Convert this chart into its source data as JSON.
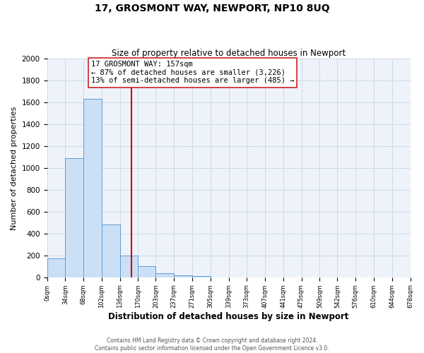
{
  "title": "17, GROSMONT WAY, NEWPORT, NP10 8UQ",
  "subtitle": "Size of property relative to detached houses in Newport",
  "xlabel": "Distribution of detached houses by size in Newport",
  "ylabel": "Number of detached properties",
  "annotation_title": "17 GROSMONT WAY: 157sqm",
  "annotation_line1": "← 87% of detached houses are smaller (3,226)",
  "annotation_line2": "13% of semi-detached houses are larger (485) →",
  "property_size": 157,
  "bin_edges": [
    0,
    34,
    68,
    102,
    136,
    170,
    203,
    237,
    271,
    305,
    339,
    373,
    407,
    441,
    475,
    509,
    542,
    576,
    610,
    644,
    678
  ],
  "bin_counts": [
    170,
    1090,
    1630,
    480,
    200,
    100,
    40,
    20,
    10,
    0,
    0,
    0,
    0,
    0,
    0,
    0,
    0,
    0,
    0,
    0
  ],
  "bar_color": "#cce0f5",
  "bar_edge_color": "#5b9bd5",
  "vline_color": "#cc0000",
  "grid_color": "#d0d8e8",
  "background_color": "#eef3fa",
  "footer_line1": "Contains HM Land Registry data © Crown copyright and database right 2024.",
  "footer_line2": "Contains public sector information licensed under the Open Government Licence v3.0.",
  "ylim": [
    0,
    2000
  ],
  "yticks": [
    0,
    200,
    400,
    600,
    800,
    1000,
    1200,
    1400,
    1600,
    1800,
    2000
  ]
}
